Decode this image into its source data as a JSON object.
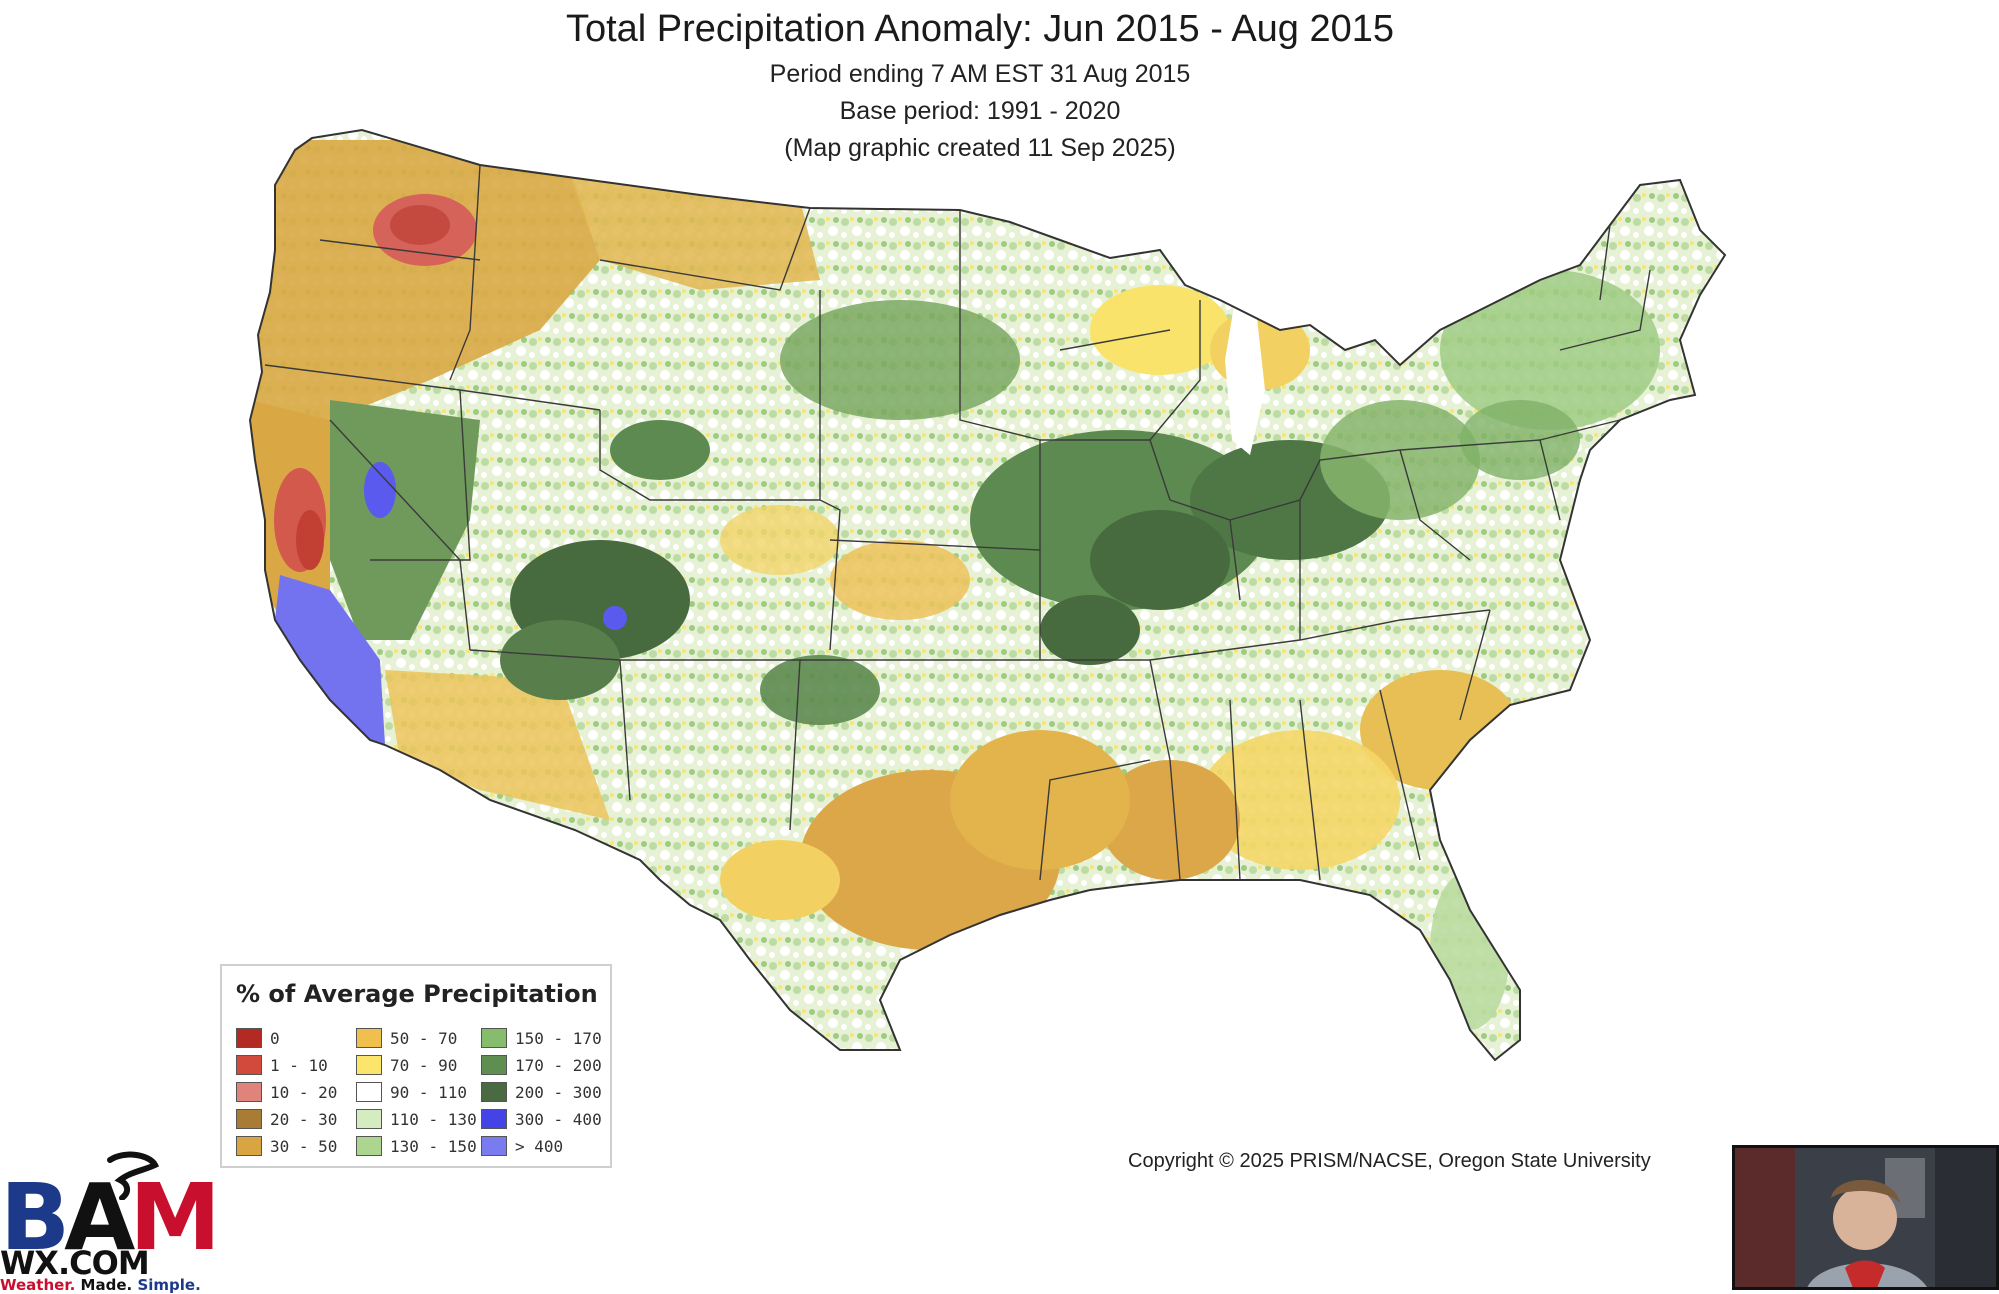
{
  "map": {
    "title": "Total Precipitation Anomaly: Jun 2015 - Aug 2015",
    "subtitle_lines": [
      "Period ending 7 AM EST 31 Aug 2015",
      "Base period: 1991 - 2020",
      "(Map graphic created 11 Sep 2025)"
    ],
    "region": "Contiguous United States",
    "regional_anomalies": [
      {
        "area": "Pacific Northwest / Idaho Panhandle",
        "category": "10 - 20",
        "color": "#e07a70"
      },
      {
        "area": "Central California",
        "category": "1 - 10",
        "color": "#d95a4a"
      },
      {
        "area": "Southern California",
        "category": "> 400",
        "color": "#7b7bf0"
      },
      {
        "area": "Central Nevada",
        "category": "300 - 400",
        "color": "#6a6af0"
      },
      {
        "area": "Four Corners",
        "category": "200 - 300",
        "color": "#3f6b3a"
      },
      {
        "area": "Central Plains / Midwest",
        "category": "170 - 200",
        "color": "#5e8a4f"
      },
      {
        "area": "Texas / Lower Mississippi Valley",
        "category": "50 - 70",
        "color": "#e0b34a"
      },
      {
        "area": "Montana / Washington",
        "category": "30 - 50",
        "color": "#d4a640"
      },
      {
        "area": "Great Lakes",
        "category": "70 - 90",
        "color": "#fae46a"
      },
      {
        "area": "Northeast",
        "category": "130 - 150",
        "color": "#a9d48d"
      },
      {
        "area": "Florida",
        "category": "110 - 130",
        "color": "#cfeab8"
      }
    ]
  },
  "legend": {
    "title": "% of Average Precipitation",
    "items": [
      {
        "label": "0",
        "color": "#b22a22"
      },
      {
        "label": "1 - 10",
        "color": "#d24a3c"
      },
      {
        "label": "10 - 20",
        "color": "#e0837a"
      },
      {
        "label": "20 - 30",
        "color": "#a87c35"
      },
      {
        "label": "30 - 50",
        "color": "#d8a542"
      },
      {
        "label": "50 - 70",
        "color": "#f0c04e"
      },
      {
        "label": "70 - 90",
        "color": "#fbe56a"
      },
      {
        "label": "90 - 110",
        "color": "#ffffff"
      },
      {
        "label": "110 - 130",
        "color": "#d4ecbf"
      },
      {
        "label": "130 - 150",
        "color": "#acd690"
      },
      {
        "label": "150 - 170",
        "color": "#86bd6c"
      },
      {
        "label": "170 - 200",
        "color": "#5f8f50"
      },
      {
        "label": "200 - 300",
        "color": "#4a6a42"
      },
      {
        "label": "300 - 400",
        "color": "#4444e6"
      },
      {
        "label": "> 400",
        "color": "#7b7bf0"
      }
    ]
  },
  "copyright": "Copyright © 2025 PRISM/NACSE, Oregon State University",
  "logo": {
    "letters": [
      "B",
      "A",
      "M"
    ],
    "domain": "WX.COM",
    "tagline": [
      "Weather.",
      "Made.",
      "Simple."
    ],
    "colors": {
      "blue": "#1d3a8a",
      "red": "#c8102e",
      "black": "#111111"
    }
  },
  "webcam": {
    "description_icon": "presenter-video-icon"
  }
}
